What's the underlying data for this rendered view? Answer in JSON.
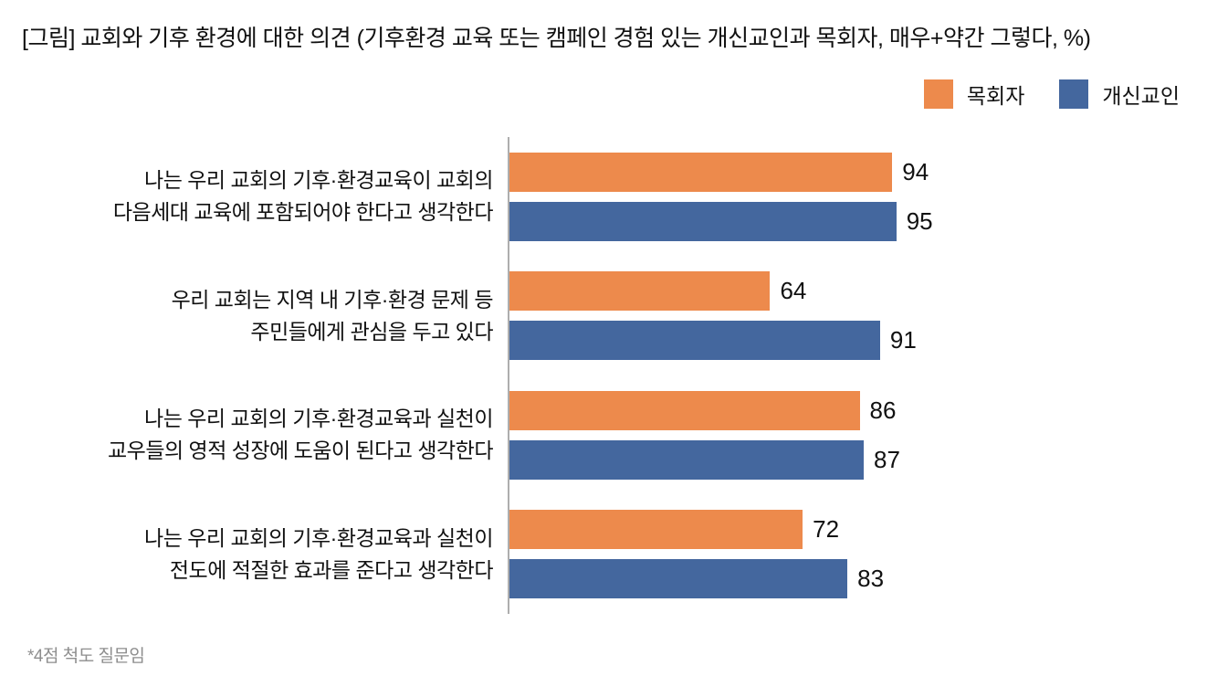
{
  "title": "[그림] 교회와 기후 환경에 대한 의견 (기후환경 교육 또는 캠페인 경험 있는 개신교인과 목회자, 매우+약간 그렇다, %)",
  "footnote": "*4점 척도 질문임",
  "colors": {
    "pastor_orange": "#ED8A4C",
    "protestant_blue": "#44679E",
    "axis_gray": "#AEAEAE",
    "footnote_gray": "#8E8E8E"
  },
  "legend": [
    {
      "key": "pastor",
      "label": "목회자",
      "color": "#ED8A4C"
    },
    {
      "key": "protestant",
      "label": "개신교인",
      "color": "#44679E"
    }
  ],
  "chart_data": {
    "type": "bar",
    "orientation": "horizontal",
    "title": "[그림] 교회와 기후 환경에 대한 의견 (기후환경 교육 또는 캠페인 경험 있는 개신교인과 목회자, 매우+약간 그렇다, %)",
    "xlabel": "",
    "ylabel": "",
    "xlim": [
      0,
      100
    ],
    "unit": "%",
    "grid": false,
    "data_labels": true,
    "legend_position": "top-right",
    "categories": [
      {
        "lines": [
          "나는 우리 교회의 기후·환경교육이 교회의",
          "다음세대 교육에 포함되어야 한다고 생각한다"
        ]
      },
      {
        "lines": [
          "우리 교회는 지역 내 기후·환경 문제 등",
          "주민들에게 관심을 두고 있다"
        ]
      },
      {
        "lines": [
          "나는 우리 교회의 기후·환경교육과 실천이",
          "교우들의 영적 성장에 도움이 된다고 생각한다"
        ]
      },
      {
        "lines": [
          "나는 우리 교회의 기후·환경교육과 실천이",
          "전도에 적절한 효과를 준다고 생각한다"
        ]
      }
    ],
    "series": [
      {
        "key": "pastor",
        "name": "목회자",
        "color": "#ED8A4C",
        "values": [
          94,
          64,
          86,
          72
        ]
      },
      {
        "key": "protestant",
        "name": "개신교인",
        "color": "#44679E",
        "values": [
          95,
          91,
          87,
          83
        ]
      }
    ]
  }
}
